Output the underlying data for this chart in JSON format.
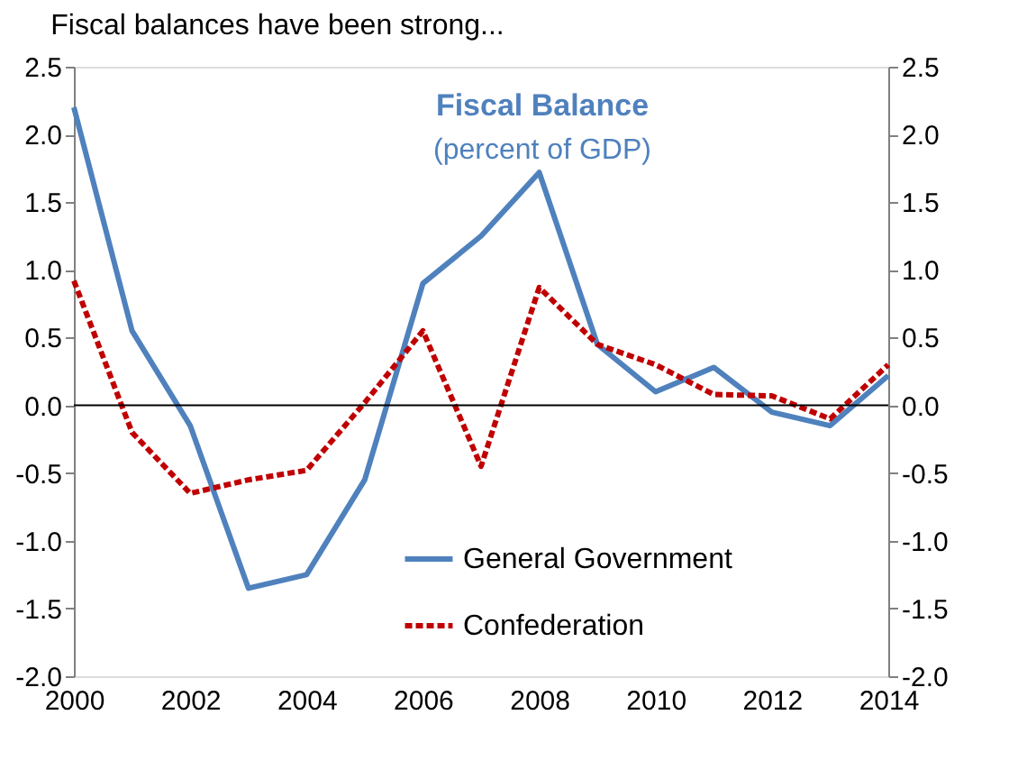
{
  "chart_data": {
    "type": "line",
    "title": "Fiscal balances have been strong...",
    "annotations": [
      "Fiscal Balance",
      "(percent of GDP)"
    ],
    "x": [
      2000,
      2001,
      2002,
      2003,
      2004,
      2005,
      2006,
      2007,
      2008,
      2009,
      2010,
      2011,
      2012,
      2013,
      2014
    ],
    "series": [
      {
        "name": "General Government",
        "color": "#4f81bd",
        "line_style": "solid",
        "values": [
          2.2,
          0.55,
          -0.15,
          -1.35,
          -1.25,
          -0.55,
          0.9,
          1.25,
          1.72,
          0.45,
          0.1,
          0.28,
          -0.05,
          -0.15,
          0.22
        ]
      },
      {
        "name": "Confederation",
        "color": "#c00000",
        "line_style": "dashed",
        "values": [
          0.92,
          -0.2,
          -0.65,
          -0.55,
          -0.48,
          0.02,
          0.55,
          -0.45,
          0.87,
          0.45,
          0.3,
          0.08,
          0.07,
          -0.1,
          0.3
        ]
      }
    ],
    "xlim": [
      2000,
      2014
    ],
    "xticks": [
      2000,
      2002,
      2004,
      2006,
      2008,
      2010,
      2012,
      2014
    ],
    "ylim": [
      -2.0,
      2.5
    ],
    "yticks": [
      {
        "value": -2.0,
        "label": "-2.0"
      },
      {
        "value": -1.5,
        "label": "-1.5"
      },
      {
        "value": -1.0,
        "label": "-1.0"
      },
      {
        "value": -0.5,
        "label": "-0.5"
      },
      {
        "value": 0,
        "label": "0.0"
      },
      {
        "value": 0.5,
        "label": "0.5"
      },
      {
        "value": 1.0,
        "label": "1.0"
      },
      {
        "value": 1.5,
        "label": "1.5"
      },
      {
        "value": 2.0,
        "label": "2.0"
      },
      {
        "value": 2.5,
        "label": "2.5"
      }
    ],
    "y2lim": [
      -2.0,
      2.5
    ],
    "y2ticks": [
      {
        "value": -2.0,
        "label": "-2.0"
      },
      {
        "value": -1.5,
        "label": "-1.5"
      },
      {
        "value": -1.0,
        "label": "-1.0"
      },
      {
        "value": -0.5,
        "label": "-0.5"
      },
      {
        "value": 0,
        "label": "0.0"
      },
      {
        "value": 0.5,
        "label": "0.5"
      },
      {
        "value": 1.0,
        "label": "1.0"
      },
      {
        "value": 1.5,
        "label": "1.5"
      },
      {
        "value": 2.0,
        "label": "2.0"
      },
      {
        "value": 2.5,
        "label": "2.5"
      }
    ],
    "ref_lines": [
      {
        "axis": "y",
        "value": 0,
        "color": "#000000"
      }
    ],
    "legend": "bottom right",
    "grid": false,
    "marker": "none"
  }
}
